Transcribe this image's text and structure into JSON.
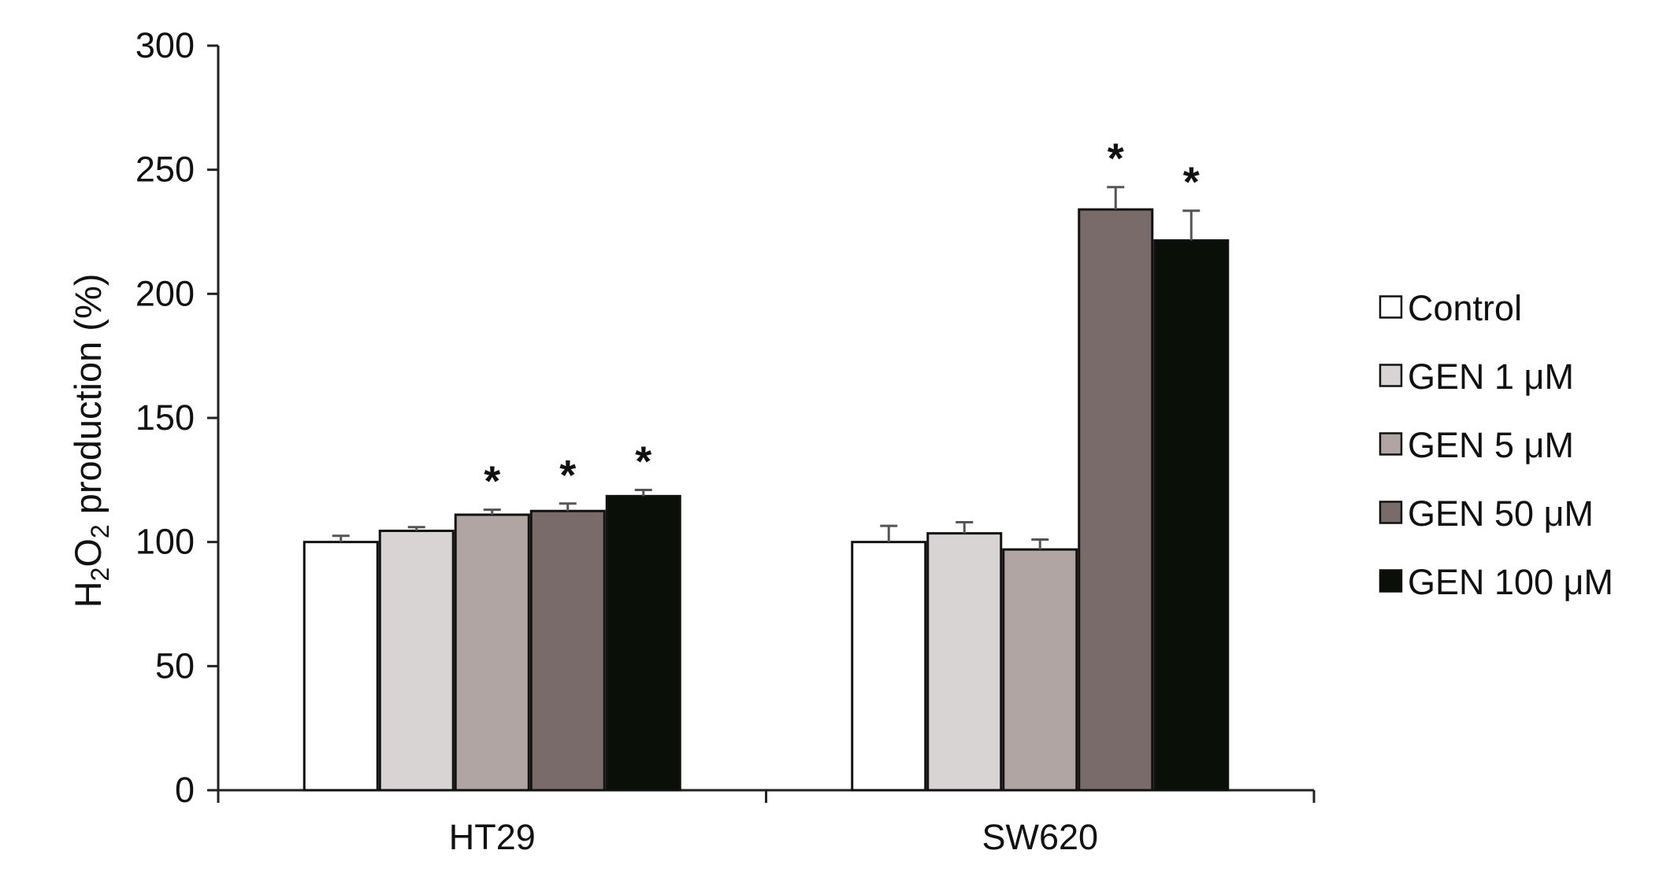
{
  "chart_data": {
    "type": "bar",
    "title": "",
    "xlabel": "",
    "ylabel": {
      "pre": "H",
      "sub1": "2",
      "mid": "O",
      "sub2": "2",
      "post": " production (%)"
    },
    "ylim": [
      0,
      300
    ],
    "yticks": [
      "0",
      "50",
      "100",
      "150",
      "200",
      "250",
      "300"
    ],
    "grid": false,
    "legend_position": "right",
    "categories": [
      "HT29",
      "SW620"
    ],
    "significance_symbol": "*",
    "series": [
      {
        "name": "Control",
        "color": "#ffffff",
        "values": [
          100,
          100
        ],
        "errors": [
          2.5,
          6.5
        ],
        "significant": [
          false,
          false
        ]
      },
      {
        "name": "GEN 1 μM",
        "color": "#d8d4d3",
        "values": [
          104.5,
          103.5
        ],
        "errors": [
          1.5,
          4.5
        ],
        "significant": [
          false,
          false
        ]
      },
      {
        "name": "GEN 5 μM",
        "color": "#b0a5a3",
        "values": [
          111,
          97
        ],
        "errors": [
          2,
          4
        ],
        "significant": [
          true,
          false
        ]
      },
      {
        "name": "GEN 50 μM",
        "color": "#786b69",
        "values": [
          112.5,
          234
        ],
        "errors": [
          3,
          9
        ],
        "significant": [
          true,
          true
        ]
      },
      {
        "name": "GEN 100 μM",
        "color": "#0a0f08",
        "values": [
          118.5,
          221.5
        ],
        "errors": [
          2.5,
          12
        ],
        "significant": [
          true,
          true
        ]
      }
    ]
  }
}
